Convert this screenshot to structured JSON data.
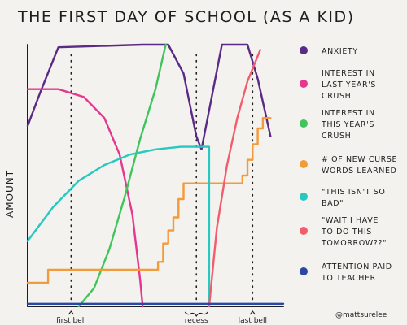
{
  "chart_data": {
    "type": "line",
    "title": "THE FIRST DAY OF SCHOOL (AS A KID)",
    "ylabel": "AMOUNT",
    "xlabel": "",
    "credit": "@mattsurelee",
    "x_markers": [
      {
        "label": "first bell",
        "x": 0.17
      },
      {
        "label": "recess",
        "x": 0.66
      },
      {
        "label": "last bell",
        "x": 0.88
      }
    ],
    "xlim": [
      0,
      1
    ],
    "ylim": [
      0,
      1
    ],
    "grid": false,
    "legend_position": "right",
    "series": [
      {
        "name": "ANXIETY",
        "color": "#5b2a86",
        "points": [
          [
            0,
            0.69
          ],
          [
            0.05,
            0.82
          ],
          [
            0.12,
            0.99
          ],
          [
            0.45,
            1.0
          ],
          [
            0.55,
            1.0
          ],
          [
            0.61,
            0.89
          ],
          [
            0.66,
            0.65
          ],
          [
            0.68,
            0.6
          ],
          [
            0.72,
            0.8
          ],
          [
            0.76,
            1.0
          ],
          [
            0.86,
            1.0
          ],
          [
            0.9,
            0.87
          ],
          [
            0.95,
            0.65
          ]
        ]
      },
      {
        "name": "INTEREST IN LAST YEAR'S CRUSH",
        "color": "#e6368f",
        "points": [
          [
            0,
            0.83
          ],
          [
            0.12,
            0.83
          ],
          [
            0.22,
            0.8
          ],
          [
            0.3,
            0.72
          ],
          [
            0.36,
            0.58
          ],
          [
            0.41,
            0.35
          ],
          [
            0.44,
            0.1
          ],
          [
            0.45,
            0.0
          ]
        ]
      },
      {
        "name": "INTEREST IN THIS YEAR'S CRUSH",
        "color": "#3fc55c",
        "points": [
          [
            0.2,
            0.0
          ],
          [
            0.26,
            0.07
          ],
          [
            0.32,
            0.22
          ],
          [
            0.38,
            0.42
          ],
          [
            0.44,
            0.64
          ],
          [
            0.5,
            0.83
          ],
          [
            0.54,
            1.0
          ]
        ]
      },
      {
        "name": "# OF NEW CURSE WORDS LEARNED",
        "color": "#f39a3a",
        "points": [
          [
            0,
            0.09
          ],
          [
            0.08,
            0.09
          ],
          [
            0.08,
            0.14
          ],
          [
            0.51,
            0.14
          ],
          [
            0.51,
            0.17
          ],
          [
            0.53,
            0.17
          ],
          [
            0.53,
            0.24
          ],
          [
            0.55,
            0.24
          ],
          [
            0.55,
            0.29
          ],
          [
            0.57,
            0.29
          ],
          [
            0.57,
            0.34
          ],
          [
            0.59,
            0.34
          ],
          [
            0.59,
            0.41
          ],
          [
            0.61,
            0.41
          ],
          [
            0.61,
            0.47
          ],
          [
            0.84,
            0.47
          ],
          [
            0.84,
            0.5
          ],
          [
            0.86,
            0.5
          ],
          [
            0.86,
            0.56
          ],
          [
            0.88,
            0.56
          ],
          [
            0.88,
            0.62
          ],
          [
            0.9,
            0.62
          ],
          [
            0.9,
            0.68
          ],
          [
            0.92,
            0.68
          ],
          [
            0.92,
            0.72
          ],
          [
            0.95,
            0.72
          ]
        ]
      },
      {
        "name": "\"THIS ISN'T SO BAD\"",
        "color": "#27c8c0",
        "points": [
          [
            0,
            0.25
          ],
          [
            0.1,
            0.38
          ],
          [
            0.2,
            0.48
          ],
          [
            0.3,
            0.54
          ],
          [
            0.4,
            0.58
          ],
          [
            0.5,
            0.6
          ],
          [
            0.6,
            0.61
          ],
          [
            0.71,
            0.61
          ],
          [
            0.71,
            0.0
          ]
        ]
      },
      {
        "name": "\"WAIT I HAVE TO DO THIS TOMORROW??\"",
        "color": "#f25d6e",
        "points": [
          [
            0.71,
            0.0
          ],
          [
            0.74,
            0.3
          ],
          [
            0.78,
            0.54
          ],
          [
            0.82,
            0.72
          ],
          [
            0.86,
            0.86
          ],
          [
            0.91,
            0.98
          ]
        ]
      },
      {
        "name": "ATTENTION PAID TO TEACHER",
        "color": "#2847a8",
        "points": [
          [
            0,
            0.01
          ],
          [
            1,
            0.01
          ]
        ]
      }
    ]
  }
}
